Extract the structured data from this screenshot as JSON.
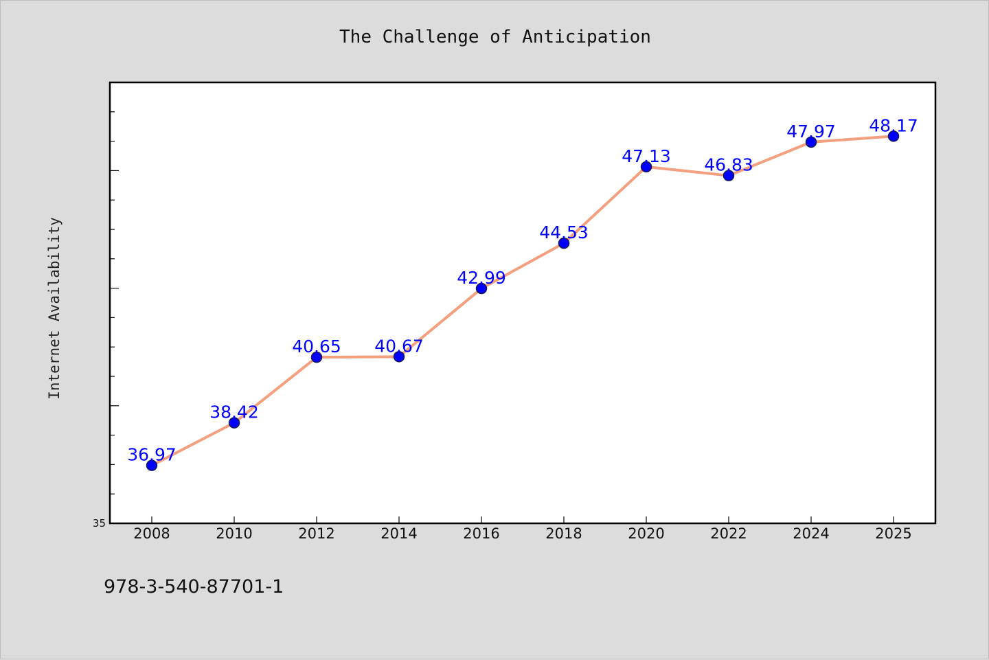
{
  "chart_data": {
    "type": "line",
    "title": "The Challenge of Anticipation",
    "xlabel": "",
    "ylabel": "Internet Availability",
    "categories": [
      "2008",
      "2010",
      "2012",
      "2014",
      "2016",
      "2018",
      "2020",
      "2022",
      "2024",
      "2025"
    ],
    "series": [
      {
        "values": [
          36.97,
          38.42,
          40.65,
          40.67,
          42.99,
          44.53,
          47.13,
          46.83,
          47.97,
          48.17
        ],
        "labels": [
          "36.97",
          "38.42",
          "40.65",
          "40.67",
          "42.99",
          "44.53",
          "47.13",
          "46.83",
          "47.97",
          "48.17"
        ]
      }
    ],
    "ylim": [
      35,
      50
    ],
    "yticks_labeled": [
      "35"
    ],
    "ymajor_tick_values": [
      35,
      39,
      43,
      47
    ],
    "yminor_step": 1,
    "grid": false,
    "legend": "none",
    "colors": {
      "line": "#f4a07f",
      "marker": "#0000ff",
      "marker_edge": "#1a1a4a",
      "data_label": "#0000ff",
      "plot_background": "#ffffff",
      "page_background": "#dcdcdc"
    }
  },
  "footer": {
    "text": "978-3-540-87701-1"
  }
}
